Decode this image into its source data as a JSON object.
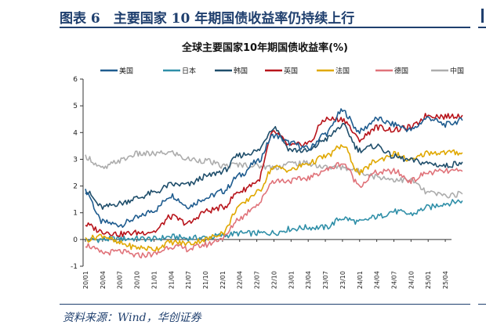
{
  "figure": {
    "title": "图表 6　主要国家 10 年期国债收益率仍持续上行",
    "source": "资料来源：Wind，华创证券"
  },
  "chart_data": {
    "type": "line",
    "title": "全球主要国家10年期国债收益率(%)",
    "xlabel": "",
    "ylabel": "",
    "ylim": [
      -1,
      6
    ],
    "yticks": [
      -1,
      0,
      1,
      2,
      3,
      4,
      5,
      6
    ],
    "grid": false,
    "legend_position": "top",
    "x_tick_labels": [
      "20/01",
      "20/04",
      "20/07",
      "20/10",
      "21/01",
      "21/04",
      "21/07",
      "21/10",
      "22/01",
      "22/04",
      "22/07",
      "22/10",
      "23/01",
      "23/04",
      "23/07",
      "23/10",
      "24/01",
      "24/04",
      "24/07",
      "24/10",
      "25/01",
      "25/04"
    ],
    "x": [
      "20/01",
      "20/04",
      "20/07",
      "20/10",
      "21/01",
      "21/04",
      "21/07",
      "21/10",
      "22/01",
      "22/04",
      "22/07",
      "22/10",
      "23/01",
      "23/04",
      "23/07",
      "23/10",
      "24/01",
      "24/04",
      "24/07",
      "24/10",
      "25/01",
      "25/04",
      "25/06"
    ],
    "series": [
      {
        "name": "美国",
        "color": "#1f5c8f",
        "values": [
          1.8,
          0.65,
          0.55,
          0.8,
          1.1,
          1.65,
          1.25,
          1.55,
          1.8,
          2.4,
          2.9,
          3.9,
          3.6,
          3.4,
          3.95,
          4.8,
          4.05,
          4.5,
          4.3,
          4.1,
          4.55,
          4.3,
          4.45
        ]
      },
      {
        "name": "日本",
        "color": "#2f8fa8",
        "values": [
          -0.02,
          0.0,
          0.03,
          0.03,
          0.02,
          0.1,
          0.05,
          0.07,
          0.15,
          0.23,
          0.23,
          0.25,
          0.4,
          0.45,
          0.45,
          0.8,
          0.65,
          0.85,
          1.05,
          0.95,
          1.2,
          1.35,
          1.45
        ]
      },
      {
        "name": "韩国",
        "color": "#1f4e6b",
        "values": [
          1.8,
          1.2,
          1.35,
          1.55,
          1.75,
          2.05,
          2.05,
          2.35,
          2.55,
          3.15,
          3.3,
          4.2,
          3.35,
          3.3,
          3.75,
          4.25,
          3.35,
          3.5,
          3.1,
          2.95,
          2.85,
          2.75,
          2.9
        ]
      },
      {
        "name": "英国",
        "color": "#b8141b",
        "values": [
          0.55,
          0.3,
          0.2,
          0.25,
          0.3,
          0.85,
          0.6,
          1.05,
          1.2,
          1.8,
          2.15,
          4.0,
          3.5,
          3.6,
          4.5,
          4.5,
          3.75,
          4.2,
          4.1,
          4.2,
          4.65,
          4.6,
          4.65
        ]
      },
      {
        "name": "法国",
        "color": "#e0a800",
        "values": [
          0.0,
          0.15,
          -0.15,
          -0.3,
          -0.35,
          -0.1,
          -0.15,
          0.0,
          0.25,
          1.25,
          1.75,
          2.7,
          2.6,
          2.85,
          3.1,
          3.5,
          2.5,
          2.95,
          3.2,
          2.95,
          3.25,
          3.25,
          3.25
        ]
      },
      {
        "name": "德国",
        "color": "#e0737a",
        "values": [
          -0.2,
          -0.5,
          -0.45,
          -0.6,
          -0.55,
          -0.25,
          -0.35,
          -0.2,
          0.05,
          0.8,
          1.3,
          2.2,
          2.2,
          2.3,
          2.6,
          2.85,
          2.05,
          2.5,
          2.55,
          2.2,
          2.5,
          2.55,
          2.55
        ]
      },
      {
        "name": "中国",
        "color": "#adadad",
        "values": [
          3.1,
          2.65,
          2.95,
          3.2,
          3.2,
          3.25,
          3.0,
          2.95,
          2.75,
          2.8,
          2.75,
          2.7,
          2.85,
          2.85,
          2.7,
          2.7,
          2.55,
          2.35,
          2.25,
          2.2,
          1.75,
          1.65,
          1.7
        ]
      }
    ]
  }
}
